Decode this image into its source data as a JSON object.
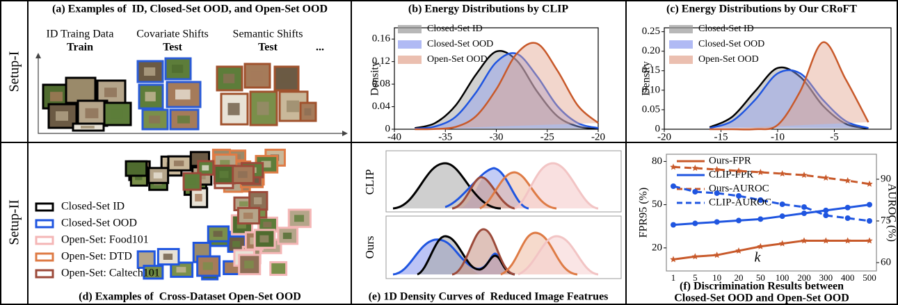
{
  "row_labels": [
    "Setup-I",
    "Setup-II"
  ],
  "panel_a": {
    "title": "(a) Examples of  ID, Closed-Set OOD, and Open-Set OOD",
    "groups": [
      {
        "label": "ID Traing Data",
        "split": "Train",
        "color": "#000000"
      },
      {
        "label": "Covariate Shifts",
        "split": "Test",
        "color": "#2a5bd7"
      },
      {
        "label": "Semantic Shifts",
        "split": "Test",
        "color": "#a0522d"
      }
    ],
    "ellipsis": "..."
  },
  "panel_d": {
    "caption": "(d) Examples of  Cross-Dataset Open-Set OOD",
    "legend": [
      {
        "name": "Closed-Set ID",
        "color": "#000000"
      },
      {
        "name": "Closed-Set OOD",
        "color": "#1f55e0"
      },
      {
        "name": "Open-Set: Food101",
        "color": "#f4b6b6"
      },
      {
        "name": "Open-Set: DTD",
        "color": "#de7b45"
      },
      {
        "name": "Open-Set: Caltech101",
        "color": "#9c4a3a"
      }
    ]
  },
  "panel_e": {
    "caption": "(e) 1D Density Curves of  Reduced Image Featrues",
    "rows": [
      "CLIP",
      "Ours"
    ]
  },
  "chart_data": [
    {
      "type": "line",
      "title": "(b) Energy Distributions by CLIP",
      "y_label": "Density",
      "x": [
        -38,
        -36,
        -34,
        -32,
        -30,
        -28,
        -26,
        -24,
        -22,
        -20
      ],
      "xlim": [
        -40,
        -20
      ],
      "xticks": [
        -40,
        -35,
        -30,
        -25,
        -20
      ],
      "ylim": [
        0,
        0.18
      ],
      "yticks": [
        0,
        0.04,
        0.08,
        0.12,
        0.16
      ],
      "series": [
        {
          "name": "Closed-Set ID",
          "color": "#000000",
          "fill": "#9a9a9a",
          "values": [
            0.002,
            0.011,
            0.042,
            0.097,
            0.138,
            0.122,
            0.067,
            0.023,
            0.005,
            0.001
          ]
        },
        {
          "name": "Closed-Set OOD",
          "color": "#1f55e0",
          "fill": "#8f9df0",
          "values": [
            0.001,
            0.005,
            0.022,
            0.065,
            0.119,
            0.134,
            0.094,
            0.041,
            0.011,
            0.002
          ]
        },
        {
          "name": "Open-Set OOD",
          "color": "#c8592a",
          "fill": "#e3a48e",
          "values": [
            0,
            0.0005,
            0.004,
            0.023,
            0.071,
            0.134,
            0.152,
            0.104,
            0.042,
            0.011
          ]
        }
      ]
    },
    {
      "type": "line",
      "title": "(c) Energy Distributions by Our CRoFT",
      "y_label": "Density",
      "x": [
        -16,
        -14,
        -12,
        -10,
        -8,
        -6,
        -4,
        -2
      ],
      "xlim": [
        -20,
        0
      ],
      "xticks": [
        -20,
        -15,
        -10,
        -5
      ],
      "ylim": [
        0,
        0.26
      ],
      "yticks": [
        0,
        0.05,
        {
          "value": 0.1,
          "label": "0.10"
        },
        0.15,
        {
          "value": 0.2,
          "label": "0.20"
        },
        0.25
      ],
      "series": [
        {
          "name": "Closed-Set ID",
          "color": "#000000",
          "fill": "#9a9a9a",
          "values": [
            0.005,
            0.032,
            0.097,
            0.157,
            0.134,
            0.06,
            0.014,
            0.002
          ]
        },
        {
          "name": "Closed-Set OOD",
          "color": "#1f55e0",
          "fill": "#8f9df0",
          "values": [
            0.003,
            0.021,
            0.075,
            0.143,
            0.143,
            0.075,
            0.021,
            0.003
          ]
        },
        {
          "name": "Open-Set OOD",
          "color": "#c8592a",
          "fill": "#e3a48e",
          "values": [
            0,
            0,
            0,
            0.011,
            0.098,
            0.223,
            0.128,
            0.018
          ]
        }
      ]
    },
    {
      "type": "line",
      "title": [
        "(f) Discrimination Results between",
        "Closed-Set OOD and Open-Set OOD"
      ],
      "x_label": "k",
      "y_label": "FPR95 (%)",
      "y2_label": "AUROC (%)",
      "categories": [
        "1",
        "5",
        "10",
        "20",
        "50",
        "100",
        "200",
        "300",
        "400",
        "500"
      ],
      "ylim": [
        4,
        85
      ],
      "yticks": [
        20,
        50,
        80
      ],
      "y2lim": [
        57,
        99
      ],
      "y2ticks": [
        60,
        75,
        90
      ],
      "series": [
        {
          "name": "Ours-FPR",
          "color": "#c8592a",
          "linestyle": "solid",
          "marker": "star",
          "values": [
            12,
            14,
            15,
            18,
            21,
            23,
            25,
            25,
            25,
            25
          ]
        },
        {
          "name": "CLIP-FPR",
          "color": "#1f55e0",
          "linestyle": "solid",
          "marker": "circle",
          "values": [
            36,
            37,
            38,
            39,
            40,
            42,
            44,
            46,
            48,
            50
          ]
        },
        {
          "name": "Ours-AUROC",
          "color": "#c8592a",
          "linestyle": "dashed",
          "marker": "star",
          "axis": "y2",
          "values": [
            94.4,
            94,
            93.5,
            93,
            92.5,
            92,
            91.5,
            90.5,
            89.5,
            88.3
          ]
        },
        {
          "name": "CLIP-AUROC",
          "color": "#1f55e0",
          "linestyle": "dashed",
          "marker": "circle",
          "axis": "y2",
          "values": [
            87.5,
            85.5,
            85,
            84,
            82.5,
            81,
            80,
            77,
            76,
            75
          ]
        }
      ]
    }
  ]
}
